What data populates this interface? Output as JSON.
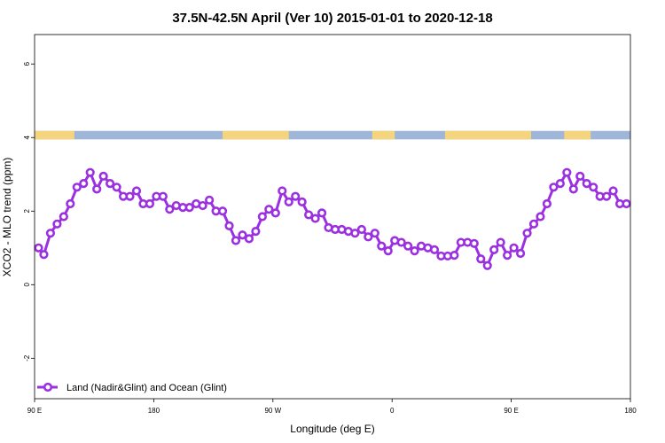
{
  "chart_data": {
    "type": "line",
    "title": "37.5N-42.5N April (Ver 10)   2015-01-01 to 2020-12-18",
    "xlabel": "Longitude (deg E)",
    "ylabel": "XCO2 - MLO trend (ppm)",
    "xlim": [
      90,
      540
    ],
    "ylim": [
      -3.1,
      6.8
    ],
    "x_ticks": [
      {
        "value": 90,
        "label": "90 E"
      },
      {
        "value": 180,
        "label": "180"
      },
      {
        "value": 270,
        "label": "90 W"
      },
      {
        "value": 360,
        "label": "0"
      },
      {
        "value": 450,
        "label": "90 E"
      },
      {
        "value": 540,
        "label": "180"
      }
    ],
    "y_ticks": [
      -2,
      0,
      2,
      4,
      6
    ],
    "legend": {
      "label": "Land (Nadir&Glint) and Ocean (Glint)",
      "position": "bottom-left"
    },
    "colors": {
      "series": "#9b30e0",
      "land": "#f5d47e",
      "ocean": "#9fb6d8"
    },
    "land_ocean_strip": {
      "y_range": [
        3.95,
        4.18
      ],
      "land": [
        [
          90,
          120
        ],
        [
          232,
          282
        ],
        [
          345,
          362
        ],
        [
          400,
          465
        ],
        [
          490,
          510
        ]
      ]
    },
    "series": [
      {
        "name": "Land (Nadir&Glint) and Ocean (Glint)",
        "x": [
          93,
          97,
          102,
          107,
          112,
          117,
          122,
          127,
          132,
          137,
          142,
          147,
          152,
          157,
          162,
          167,
          172,
          177,
          182,
          187,
          192,
          197,
          202,
          207,
          212,
          217,
          222,
          227,
          232,
          237,
          242,
          247,
          252,
          257,
          262,
          267,
          272,
          277,
          282,
          287,
          292,
          297,
          302,
          307,
          312,
          317,
          322,
          327,
          332,
          337,
          342,
          347,
          352,
          357,
          362,
          367,
          372,
          377,
          382,
          387,
          392,
          397,
          402,
          407,
          412,
          417,
          422,
          427,
          432,
          437,
          442,
          447,
          452,
          457,
          462,
          467,
          472,
          477,
          482,
          487,
          492,
          497,
          502,
          507,
          512,
          517,
          522,
          527,
          532,
          537
        ],
        "y": [
          1.0,
          0.82,
          1.4,
          1.65,
          1.85,
          2.2,
          2.65,
          2.75,
          3.05,
          2.6,
          2.95,
          2.75,
          2.65,
          2.4,
          2.4,
          2.55,
          2.2,
          2.2,
          2.4,
          2.4,
          2.05,
          2.15,
          2.1,
          2.1,
          2.2,
          2.15,
          2.3,
          2.0,
          2.0,
          1.6,
          1.2,
          1.35,
          1.25,
          1.45,
          1.85,
          2.05,
          1.95,
          2.55,
          2.25,
          2.4,
          2.25,
          1.9,
          1.8,
          1.95,
          1.55,
          1.5,
          1.5,
          1.45,
          1.4,
          1.5,
          1.3,
          1.4,
          1.05,
          0.92,
          1.2,
          1.15,
          1.05,
          0.92,
          1.05,
          1.0,
          0.95,
          0.78,
          0.78,
          0.8,
          1.15,
          1.15,
          1.12,
          0.7,
          0.52,
          0.95,
          1.15,
          0.8,
          1.0,
          0.85,
          1.4,
          1.65,
          1.85,
          2.2,
          2.65,
          2.75,
          3.05,
          2.6,
          2.95,
          2.75,
          2.65,
          2.4,
          2.4,
          2.55,
          2.2,
          2.2
        ]
      }
    ]
  }
}
